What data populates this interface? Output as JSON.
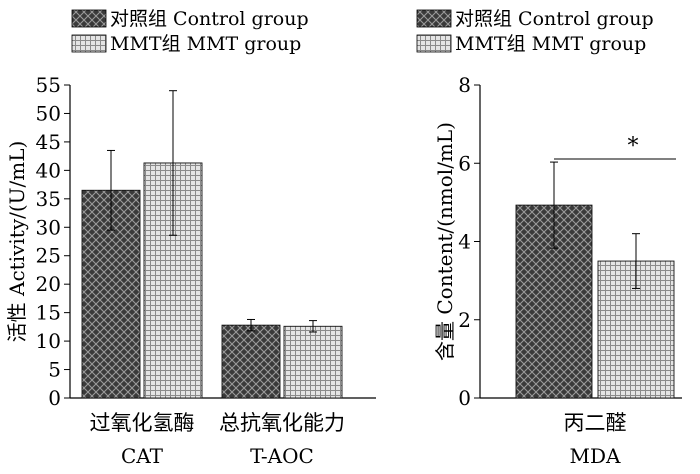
{
  "chart_data": [
    {
      "type": "bar",
      "categories": [
        "过氧化氢酶",
        "总抗氧化能力"
      ],
      "category_sublabels": [
        "CAT",
        "T-AOC"
      ],
      "ylabel": "活性 Activity/(U/mL)",
      "ylim": [
        0,
        55
      ],
      "yticks": [
        0,
        5,
        10,
        15,
        20,
        25,
        30,
        35,
        40,
        45,
        50,
        55
      ],
      "grid": false,
      "legend_position": "top-left",
      "series": [
        {
          "name": "对照组  Control group",
          "values": [
            36.5,
            12.8
          ],
          "errors": [
            7.0,
            1.0
          ],
          "pattern": "diamond-crosshatch",
          "color": "#404040"
        },
        {
          "name": "MMT组 MMT group",
          "values": [
            41.3,
            12.6
          ],
          "errors": [
            12.7,
            1.0
          ],
          "pattern": "square-grid",
          "color": "#d0d0d0"
        }
      ]
    },
    {
      "type": "bar",
      "categories": [
        "丙二醛"
      ],
      "category_sublabels": [
        "MDA"
      ],
      "ylabel": "含量 Content/(nmol/mL)",
      "ylim": [
        0,
        8
      ],
      "yticks": [
        0,
        2,
        4,
        6,
        8
      ],
      "grid": false,
      "legend_position": "top",
      "annotation": "*",
      "series": [
        {
          "name": "对照组  Control group",
          "values": [
            4.93
          ],
          "errors": [
            1.1
          ],
          "pattern": "diamond-crosshatch",
          "color": "#404040"
        },
        {
          "name": "MMT组 MMT group",
          "values": [
            3.5
          ],
          "errors": [
            0.7
          ],
          "pattern": "square-grid",
          "color": "#d0d0d0"
        }
      ]
    }
  ]
}
